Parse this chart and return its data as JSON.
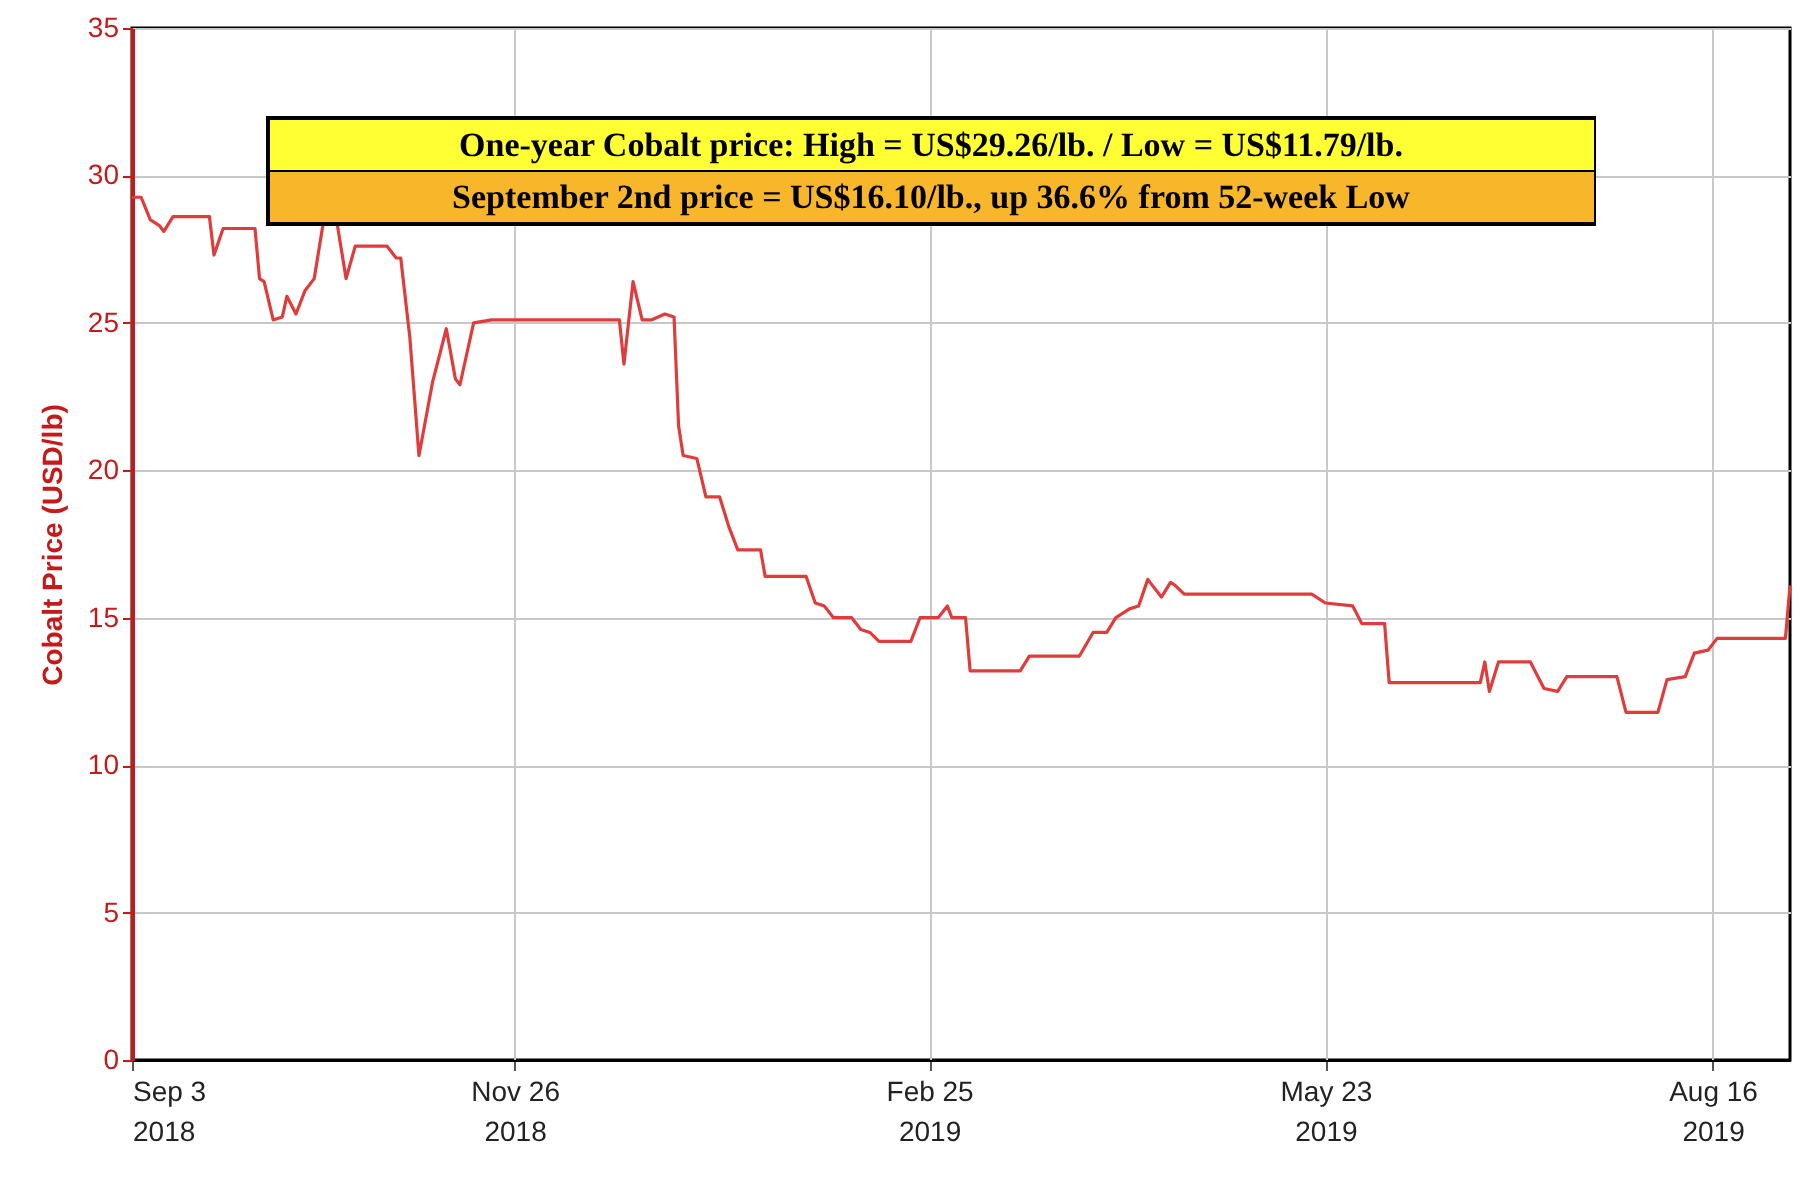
{
  "chart_data": {
    "type": "line",
    "ylabel": "Cobalt Price (USD/lb)",
    "annotations": [
      "One-year Cobalt price: High = US$29.26/lb. / Low = US$11.79/lb.",
      "September 2nd price = US$16.10/lb., up 36.6% from 52-week Low"
    ],
    "x": [
      "2018-09-03",
      "2018-09-05",
      "2018-09-07",
      "2018-09-09",
      "2018-09-10",
      "2018-09-12",
      "2018-09-20",
      "2018-09-21",
      "2018-09-23",
      "2018-09-30",
      "2018-10-01",
      "2018-10-02",
      "2018-10-04",
      "2018-10-06",
      "2018-10-07",
      "2018-10-09",
      "2018-10-11",
      "2018-10-13",
      "2018-10-15",
      "2018-10-18",
      "2018-10-20",
      "2018-10-22",
      "2018-10-29",
      "2018-10-31",
      "2018-11-01",
      "2018-11-03",
      "2018-11-05",
      "2018-11-08",
      "2018-11-11",
      "2018-11-13",
      "2018-11-14",
      "2018-11-17",
      "2018-11-21",
      "2018-12-19",
      "2018-12-20",
      "2018-12-22",
      "2018-12-24",
      "2018-12-26",
      "2018-12-29",
      "2018-12-31",
      "2019-01-01",
      "2019-01-02",
      "2019-01-05",
      "2019-01-07",
      "2019-01-10",
      "2019-01-12",
      "2019-01-14",
      "2019-01-19",
      "2019-01-20",
      "2019-01-29",
      "2019-01-31",
      "2019-02-02",
      "2019-02-04",
      "2019-02-08",
      "2019-02-10",
      "2019-02-12",
      "2019-02-14",
      "2019-02-21",
      "2019-02-23",
      "2019-02-27",
      "2019-03-01",
      "2019-03-02",
      "2019-03-05",
      "2019-03-06",
      "2019-03-17",
      "2019-03-19",
      "2019-03-30",
      "2019-04-02",
      "2019-04-05",
      "2019-04-07",
      "2019-04-10",
      "2019-04-12",
      "2019-04-14",
      "2019-04-17",
      "2019-04-19",
      "2019-04-20",
      "2019-04-22",
      "2019-05-20",
      "2019-05-23",
      "2019-05-29",
      "2019-05-31",
      "2019-06-05",
      "2019-06-06",
      "2019-06-26",
      "2019-06-27",
      "2019-06-28",
      "2019-06-30",
      "2019-07-07",
      "2019-07-10",
      "2019-07-13",
      "2019-07-15",
      "2019-07-26",
      "2019-07-28",
      "2019-08-04",
      "2019-08-06",
      "2019-08-10",
      "2019-08-12",
      "2019-08-15",
      "2019-08-17",
      "2019-09-01",
      "2019-09-02"
    ],
    "series": [
      {
        "color": "#e03c3c",
        "values": [
          29.26,
          29.26,
          28.5,
          28.3,
          28.1,
          28.6,
          28.6,
          27.3,
          28.2,
          28.2,
          26.5,
          26.4,
          25.1,
          25.2,
          25.9,
          25.3,
          26.1,
          26.5,
          28.4,
          28.4,
          26.5,
          27.6,
          27.6,
          27.2,
          27.2,
          24.5,
          20.5,
          23.0,
          24.8,
          23.1,
          22.9,
          25.0,
          25.1,
          25.1,
          23.6,
          26.4,
          25.1,
          25.1,
          25.3,
          25.2,
          21.5,
          20.5,
          20.4,
          19.1,
          19.1,
          18.1,
          17.3,
          17.3,
          16.4,
          16.4,
          15.5,
          15.4,
          15.0,
          15.0,
          14.6,
          14.5,
          14.2,
          14.2,
          15.0,
          15.0,
          15.4,
          15.0,
          15.0,
          13.2,
          13.2,
          13.7,
          13.7,
          14.5,
          14.5,
          15.0,
          15.3,
          15.4,
          16.3,
          15.7,
          16.2,
          16.1,
          15.8,
          15.8,
          15.5,
          15.4,
          14.8,
          14.8,
          12.8,
          12.8,
          13.5,
          12.5,
          13.5,
          13.5,
          12.6,
          12.5,
          13.0,
          13.0,
          11.79,
          11.79,
          12.9,
          13.0,
          13.8,
          13.9,
          14.3,
          14.3,
          16.1
        ]
      }
    ],
    "xlim": [
      "2018-09-03",
      "2019-09-02"
    ],
    "xticks": [
      {
        "value": "2018-09-03",
        "label": "Sep 3\n2018"
      },
      {
        "value": "2018-11-26",
        "label": "Nov 26\n2018"
      },
      {
        "value": "2019-02-25",
        "label": "Feb 25\n2019"
      },
      {
        "value": "2019-05-23",
        "label": "May 23\n2019"
      },
      {
        "value": "2019-08-16",
        "label": "Aug 16\n2019"
      }
    ],
    "ylim": [
      0,
      35
    ],
    "yticks": [
      0,
      5,
      10,
      15,
      20,
      25,
      30,
      35
    ],
    "grid": true
  }
}
